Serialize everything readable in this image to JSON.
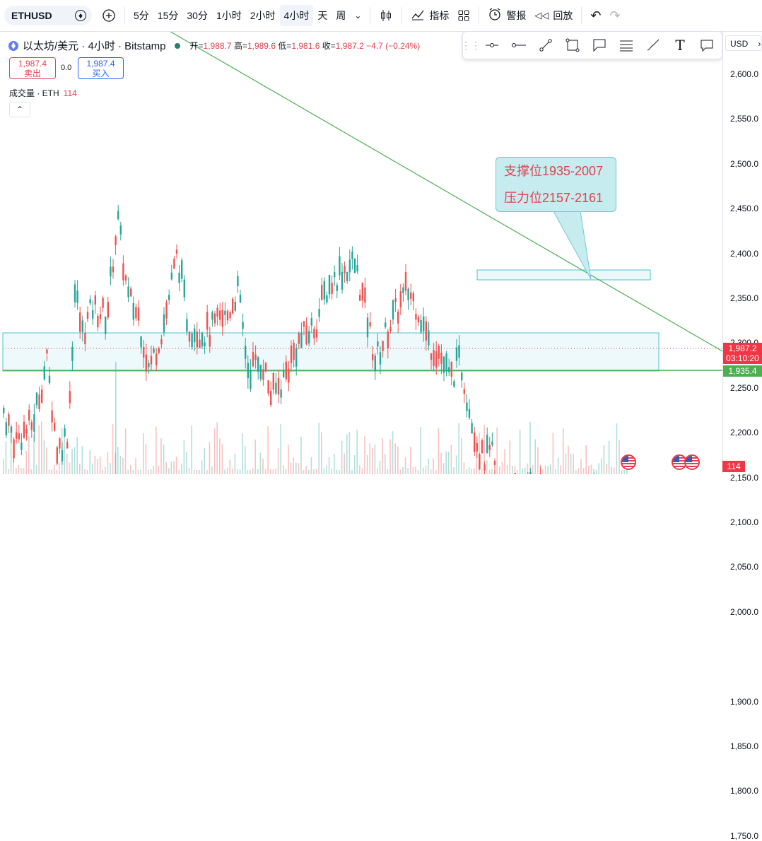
{
  "toolbar": {
    "symbol": "ETHUSD",
    "timeframes": [
      "5分",
      "15分",
      "30分",
      "1小时",
      "2小时",
      "4小时",
      "天",
      "周"
    ],
    "active_timeframe": "4小时",
    "indicators_label": "指标",
    "alert_label": "警报",
    "replay_label": "回放"
  },
  "legend": {
    "title": "以太坊/美元 · 4小时 · Bitstamp",
    "open_label": "开=",
    "open": "1,988.7",
    "high_label": "高=",
    "high": "1,989.6",
    "low_label": "低=",
    "low": "1,981.6",
    "close_label": "收=",
    "close": "1,987.2",
    "change": "−4.7 (−0.24%)"
  },
  "trade": {
    "sell_price": "1,987.4",
    "sell_label": "卖出",
    "spread": "0.0",
    "buy_price": "1,987.4",
    "buy_label": "买入"
  },
  "volume_legend": {
    "label": "成交量 · ETH",
    "value": "114"
  },
  "currency": "USD",
  "price_axis": {
    "ticks": [
      "2,600.0",
      "2,550.0",
      "2,500.0",
      "2,450.0",
      "2,400.0",
      "2,350.0",
      "2,300.0",
      "2,250.0",
      "2,200.0",
      "2,150.0",
      "2,100.0",
      "2,050.0",
      "2,000.0",
      "1,900.0",
      "1,850.0",
      "1,800.0",
      "1,750.0"
    ],
    "current_price": "1,987.2",
    "countdown": "03:10:20",
    "support_price": "1,935.4",
    "volume_value": "114"
  },
  "callout": {
    "line1": "支撑位1935-2007",
    "line2": "压力位2157-2161"
  },
  "colors": {
    "up": "#26a69a",
    "down": "#ef5350",
    "trendline": "#4caf50",
    "zone": "#4fc3d4"
  }
}
